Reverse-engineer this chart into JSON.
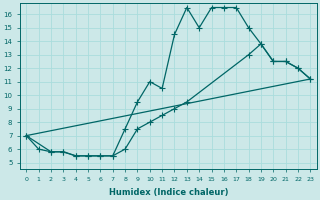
{
  "xlabel": "Humidex (Indice chaleur)",
  "bg_color": "#cce8e8",
  "grid_color": "#aadddd",
  "line_color": "#006666",
  "xlim": [
    -0.5,
    23.5
  ],
  "ylim": [
    4.5,
    16.8
  ],
  "xticks": [
    0,
    1,
    2,
    3,
    4,
    5,
    6,
    7,
    8,
    9,
    10,
    11,
    12,
    13,
    14,
    15,
    16,
    17,
    18,
    19,
    20,
    21,
    22,
    23
  ],
  "yticks": [
    5,
    6,
    7,
    8,
    9,
    10,
    11,
    12,
    13,
    14,
    15,
    16
  ],
  "line1_x": [
    0,
    1,
    2,
    3,
    4,
    5,
    6,
    7,
    8,
    9,
    10,
    11,
    12,
    13,
    14,
    15,
    16,
    17,
    18,
    19,
    20,
    21,
    22,
    23
  ],
  "line1_y": [
    7.0,
    6.0,
    5.8,
    5.8,
    5.5,
    5.5,
    5.5,
    5.5,
    7.5,
    9.5,
    11.0,
    10.5,
    14.5,
    16.5,
    15.0,
    16.5,
    16.5,
    16.5,
    15.0,
    13.8,
    12.5,
    12.5,
    12.0,
    11.2
  ],
  "line2_x": [
    0,
    2,
    3,
    4,
    5,
    6,
    7,
    8,
    9,
    10,
    11,
    12,
    13,
    18,
    19,
    20,
    21,
    22,
    23
  ],
  "line2_y": [
    7.0,
    5.8,
    5.8,
    5.5,
    5.5,
    5.5,
    5.5,
    6.0,
    7.5,
    8.0,
    8.5,
    9.0,
    9.5,
    13.0,
    13.8,
    12.5,
    12.5,
    12.0,
    11.2
  ],
  "line3_x": [
    0,
    23
  ],
  "line3_y": [
    7.0,
    11.2
  ],
  "marker_size": 2.5,
  "linewidth": 0.9
}
